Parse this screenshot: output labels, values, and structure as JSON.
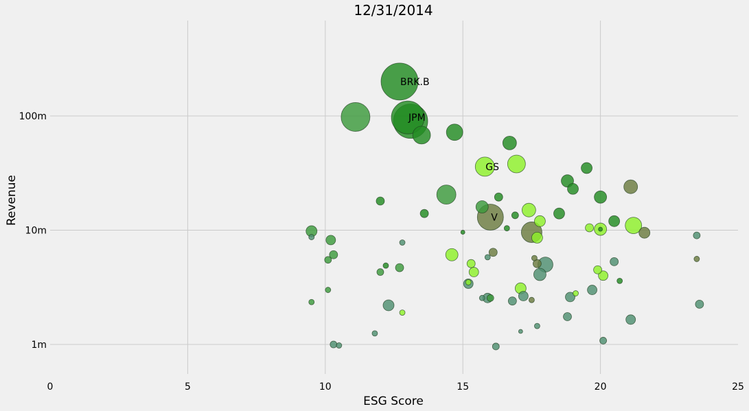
{
  "chart_data": {
    "type": "scatter",
    "title": "12/31/2014",
    "xlabel": "ESG Score",
    "ylabel": "Revenue",
    "xlim": [
      0,
      25
    ],
    "ylim_log10": [
      5.7,
      6.95
    ],
    "y_scale": "log",
    "grid": true,
    "legend": "none",
    "x_ticks": [
      0,
      5,
      10,
      15,
      20,
      25
    ],
    "y_ticks": [
      {
        "value": 1000000,
        "label": "1m"
      },
      {
        "value": 10000000,
        "label": "10m"
      },
      {
        "value": 100000000,
        "label": "100m"
      }
    ],
    "colors": {
      "dark_green": "#228b22",
      "green": "#3c9a3c",
      "teal": "#4e8f70",
      "olive": "#6b7b3f",
      "lime": "#8ef02a"
    },
    "points": [
      {
        "x": 12.7,
        "y": 200000000,
        "r": 27,
        "c": "dark_green",
        "label": "BRK.B"
      },
      {
        "x": 11.1,
        "y": 98000000,
        "r": 21,
        "c": "green"
      },
      {
        "x": 13.0,
        "y": 97000000,
        "r": 24,
        "c": "dark_green",
        "label": "JPM"
      },
      {
        "x": 13.1,
        "y": 90000000,
        "r": 25,
        "c": "dark_green"
      },
      {
        "x": 13.5,
        "y": 68000000,
        "r": 13,
        "c": "dark_green"
      },
      {
        "x": 14.7,
        "y": 72000000,
        "r": 12,
        "c": "dark_green"
      },
      {
        "x": 16.7,
        "y": 58000000,
        "r": 10,
        "c": "dark_green"
      },
      {
        "x": 15.8,
        "y": 36000000,
        "r": 14,
        "c": "lime",
        "label": "GS"
      },
      {
        "x": 16.95,
        "y": 38000000,
        "r": 13,
        "c": "lime"
      },
      {
        "x": 19.5,
        "y": 35000000,
        "r": 8,
        "c": "dark_green"
      },
      {
        "x": 18.8,
        "y": 27000000,
        "r": 9,
        "c": "dark_green"
      },
      {
        "x": 19.0,
        "y": 23000000,
        "r": 8,
        "c": "dark_green"
      },
      {
        "x": 21.1,
        "y": 24000000,
        "r": 10,
        "c": "olive"
      },
      {
        "x": 20.0,
        "y": 19500000,
        "r": 9,
        "c": "dark_green"
      },
      {
        "x": 14.4,
        "y": 20500000,
        "r": 14,
        "c": "green"
      },
      {
        "x": 16.3,
        "y": 19500000,
        "r": 6,
        "c": "dark_green"
      },
      {
        "x": 12.0,
        "y": 18000000,
        "r": 6,
        "c": "dark_green"
      },
      {
        "x": 15.7,
        "y": 16000000,
        "r": 9,
        "c": "green"
      },
      {
        "x": 17.4,
        "y": 15000000,
        "r": 10,
        "c": "lime"
      },
      {
        "x": 16.0,
        "y": 13000000,
        "r": 19,
        "c": "olive",
        "label": "V"
      },
      {
        "x": 13.6,
        "y": 14000000,
        "r": 6,
        "c": "dark_green"
      },
      {
        "x": 16.9,
        "y": 13500000,
        "r": 5,
        "c": "dark_green"
      },
      {
        "x": 18.5,
        "y": 14000000,
        "r": 8,
        "c": "dark_green"
      },
      {
        "x": 17.8,
        "y": 12000000,
        "r": 8,
        "c": "lime"
      },
      {
        "x": 20.5,
        "y": 12000000,
        "r": 8,
        "c": "dark_green"
      },
      {
        "x": 21.2,
        "y": 11000000,
        "r": 12,
        "c": "lime"
      },
      {
        "x": 19.6,
        "y": 10500000,
        "r": 6,
        "c": "lime"
      },
      {
        "x": 20.0,
        "y": 10200000,
        "r": 9,
        "c": "lime"
      },
      {
        "x": 20.0,
        "y": 10200000,
        "r": 3,
        "c": "dark_green"
      },
      {
        "x": 16.6,
        "y": 10400000,
        "r": 4,
        "c": "dark_green"
      },
      {
        "x": 17.5,
        "y": 9600000,
        "r": 15,
        "c": "olive"
      },
      {
        "x": 17.7,
        "y": 8600000,
        "r": 8,
        "c": "lime"
      },
      {
        "x": 21.6,
        "y": 9500000,
        "r": 8,
        "c": "olive"
      },
      {
        "x": 15.0,
        "y": 9600000,
        "r": 3,
        "c": "dark_green"
      },
      {
        "x": 9.5,
        "y": 9800000,
        "r": 8,
        "c": "green"
      },
      {
        "x": 9.5,
        "y": 8700000,
        "r": 4,
        "c": "teal"
      },
      {
        "x": 10.2,
        "y": 8200000,
        "r": 7,
        "c": "green"
      },
      {
        "x": 12.8,
        "y": 7800000,
        "r": 4,
        "c": "teal"
      },
      {
        "x": 23.5,
        "y": 9000000,
        "r": 5,
        "c": "teal"
      },
      {
        "x": 16.1,
        "y": 6400000,
        "r": 6,
        "c": "olive"
      },
      {
        "x": 14.6,
        "y": 6100000,
        "r": 9,
        "c": "lime"
      },
      {
        "x": 10.3,
        "y": 6100000,
        "r": 6,
        "c": "green"
      },
      {
        "x": 10.1,
        "y": 5500000,
        "r": 5,
        "c": "green"
      },
      {
        "x": 15.9,
        "y": 5800000,
        "r": 4,
        "c": "teal"
      },
      {
        "x": 17.6,
        "y": 5700000,
        "r": 4,
        "c": "olive"
      },
      {
        "x": 17.7,
        "y": 5100000,
        "r": 6,
        "c": "olive"
      },
      {
        "x": 18.0,
        "y": 5000000,
        "r": 11,
        "c": "teal"
      },
      {
        "x": 15.3,
        "y": 5100000,
        "r": 6,
        "c": "lime"
      },
      {
        "x": 20.5,
        "y": 5300000,
        "r": 6,
        "c": "teal"
      },
      {
        "x": 23.5,
        "y": 5600000,
        "r": 4,
        "c": "olive"
      },
      {
        "x": 12.2,
        "y": 4900000,
        "r": 4,
        "c": "dark_green"
      },
      {
        "x": 12.7,
        "y": 4700000,
        "r": 6,
        "c": "green"
      },
      {
        "x": 12.0,
        "y": 4300000,
        "r": 5,
        "c": "green"
      },
      {
        "x": 15.4,
        "y": 4300000,
        "r": 7,
        "c": "lime"
      },
      {
        "x": 17.8,
        "y": 4100000,
        "r": 9,
        "c": "teal"
      },
      {
        "x": 19.9,
        "y": 4500000,
        "r": 6,
        "c": "lime"
      },
      {
        "x": 20.1,
        "y": 4000000,
        "r": 7,
        "c": "lime"
      },
      {
        "x": 20.7,
        "y": 3600000,
        "r": 4,
        "c": "dark_green"
      },
      {
        "x": 15.2,
        "y": 3400000,
        "r": 7,
        "c": "teal"
      },
      {
        "x": 15.2,
        "y": 3500000,
        "r": 4,
        "c": "lime"
      },
      {
        "x": 17.1,
        "y": 3100000,
        "r": 8,
        "c": "lime"
      },
      {
        "x": 19.7,
        "y": 3000000,
        "r": 7,
        "c": "teal"
      },
      {
        "x": 10.1,
        "y": 3000000,
        "r": 4,
        "c": "green"
      },
      {
        "x": 17.2,
        "y": 2650000,
        "r": 7,
        "c": "teal"
      },
      {
        "x": 15.7,
        "y": 2550000,
        "r": 4,
        "c": "teal"
      },
      {
        "x": 15.9,
        "y": 2550000,
        "r": 7,
        "c": "teal"
      },
      {
        "x": 16.0,
        "y": 2550000,
        "r": 5,
        "c": "green"
      },
      {
        "x": 16.8,
        "y": 2400000,
        "r": 6,
        "c": "teal"
      },
      {
        "x": 17.5,
        "y": 2450000,
        "r": 4,
        "c": "olive"
      },
      {
        "x": 18.9,
        "y": 2600000,
        "r": 7,
        "c": "teal"
      },
      {
        "x": 19.1,
        "y": 2800000,
        "r": 4,
        "c": "lime"
      },
      {
        "x": 23.6,
        "y": 2250000,
        "r": 6,
        "c": "teal"
      },
      {
        "x": 9.5,
        "y": 2350000,
        "r": 4,
        "c": "green"
      },
      {
        "x": 12.3,
        "y": 2200000,
        "r": 8,
        "c": "teal"
      },
      {
        "x": 12.8,
        "y": 1900000,
        "r": 4,
        "c": "lime"
      },
      {
        "x": 18.8,
        "y": 1750000,
        "r": 6,
        "c": "teal"
      },
      {
        "x": 21.1,
        "y": 1650000,
        "r": 7,
        "c": "teal"
      },
      {
        "x": 17.7,
        "y": 1450000,
        "r": 4,
        "c": "teal"
      },
      {
        "x": 17.1,
        "y": 1300000,
        "r": 3,
        "c": "teal"
      },
      {
        "x": 11.8,
        "y": 1250000,
        "r": 4,
        "c": "teal"
      },
      {
        "x": 20.1,
        "y": 1080000,
        "r": 5,
        "c": "teal"
      },
      {
        "x": 10.3,
        "y": 1000000,
        "r": 5,
        "c": "teal"
      },
      {
        "x": 10.5,
        "y": 980000,
        "r": 4,
        "c": "teal"
      },
      {
        "x": 16.2,
        "y": 960000,
        "r": 5,
        "c": "teal"
      }
    ]
  }
}
